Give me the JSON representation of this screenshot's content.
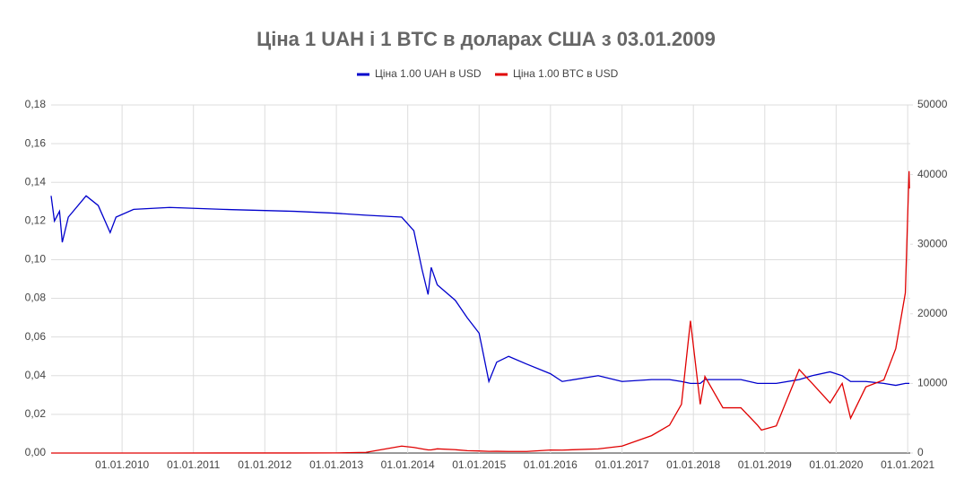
{
  "chart_data": {
    "type": "line",
    "title": "Ціна 1 UAH і 1 BTC в доларах США з 03.01.2009",
    "x": [
      "2009-01-03",
      "2009-01-20",
      "2009-02-15",
      "2009-03-01",
      "2009-04-01",
      "2009-07-01",
      "2009-09-01",
      "2009-11-01",
      "2009-12-01",
      "2010-03-01",
      "2010-09-01",
      "2011-06-01",
      "2012-06-01",
      "2013-01-01",
      "2013-06-01",
      "2013-12-01",
      "2014-02-01",
      "2014-03-15",
      "2014-04-15",
      "2014-05-01",
      "2014-06-01",
      "2014-09-01",
      "2014-11-01",
      "2015-01-01",
      "2015-02-20",
      "2015-04-01",
      "2015-06-01",
      "2015-09-01",
      "2016-01-01",
      "2016-03-01",
      "2016-09-01",
      "2017-01-01",
      "2017-06-01",
      "2017-09-01",
      "2017-11-01",
      "2017-12-17",
      "2018-02-05",
      "2018-03-01",
      "2018-06-01",
      "2018-09-01",
      "2018-11-25",
      "2018-12-15",
      "2019-03-01",
      "2019-06-26",
      "2019-09-01",
      "2019-12-01",
      "2020-02-01",
      "2020-03-15",
      "2020-06-01",
      "2020-09-01",
      "2020-11-01",
      "2020-12-20",
      "2021-01-08",
      "2021-01-10"
    ],
    "series": [
      {
        "name": "Ціна 1.00 UAH в USD",
        "color": "#0000cc",
        "axis": "y",
        "values": [
          0.133,
          0.12,
          0.125,
          0.109,
          0.122,
          0.133,
          0.128,
          0.114,
          0.122,
          0.126,
          0.127,
          0.126,
          0.125,
          0.124,
          0.123,
          0.122,
          0.115,
          0.095,
          0.082,
          0.096,
          0.087,
          0.079,
          0.07,
          0.062,
          0.037,
          0.047,
          0.05,
          0.046,
          0.041,
          0.037,
          0.04,
          0.037,
          0.038,
          0.038,
          0.037,
          0.036,
          0.036,
          0.038,
          0.038,
          0.038,
          0.036,
          0.036,
          0.036,
          0.038,
          0.04,
          0.042,
          0.04,
          0.037,
          0.037,
          0.036,
          0.035,
          0.036,
          0.036,
          0.036
        ]
      },
      {
        "name": "Ціна 1.00 BTC в USD",
        "color": "#e00000",
        "axis": "y2",
        "values": [
          0,
          0,
          0,
          0,
          0,
          0,
          0,
          0,
          0,
          0,
          0,
          10,
          6,
          13,
          100,
          1000,
          800,
          600,
          450,
          450,
          600,
          480,
          340,
          300,
          240,
          250,
          230,
          230,
          430,
          420,
          600,
          1000,
          2500,
          4000,
          7000,
          19000,
          7000,
          11000,
          6500,
          6500,
          4000,
          3300,
          3900,
          12000,
          10000,
          7200,
          10000,
          5000,
          9500,
          10500,
          15000,
          23000,
          40500,
          38000
        ]
      }
    ],
    "xlim": [
      "2009-01-03",
      "2021-01-14"
    ],
    "xticks": [
      {
        "value": "2010-01-01",
        "label": "01.01.2010"
      },
      {
        "value": "2011-01-01",
        "label": "01.01.2011"
      },
      {
        "value": "2012-01-01",
        "label": "01.01.2012"
      },
      {
        "value": "2013-01-01",
        "label": "01.01.2013"
      },
      {
        "value": "2014-01-01",
        "label": "01.01.2014"
      },
      {
        "value": "2015-01-01",
        "label": "01.01.2015"
      },
      {
        "value": "2016-01-01",
        "label": "01.01.2016"
      },
      {
        "value": "2017-01-01",
        "label": "01.01.2017"
      },
      {
        "value": "2018-01-01",
        "label": "01.01.2018"
      },
      {
        "value": "2019-01-01",
        "label": "01.01.2019"
      },
      {
        "value": "2020-01-01",
        "label": "01.01.2020"
      },
      {
        "value": "2021-01-01",
        "label": "01.01.2021"
      }
    ],
    "ylim": [
      0,
      0.18
    ],
    "yticks": [
      {
        "value": 0,
        "label": "0,00"
      },
      {
        "value": 0.02,
        "label": "0,02"
      },
      {
        "value": 0.04,
        "label": "0,04"
      },
      {
        "value": 0.06,
        "label": "0,06"
      },
      {
        "value": 0.08,
        "label": "0,08"
      },
      {
        "value": 0.1,
        "label": "0,10"
      },
      {
        "value": 0.12,
        "label": "0,12"
      },
      {
        "value": 0.14,
        "label": "0,14"
      },
      {
        "value": 0.16,
        "label": "0,16"
      },
      {
        "value": 0.18,
        "label": "0,18"
      }
    ],
    "y2lim": [
      0,
      50000
    ],
    "y2ticks": [
      0,
      10000,
      20000,
      30000,
      40000,
      50000
    ],
    "grid": true,
    "legend": "top"
  }
}
